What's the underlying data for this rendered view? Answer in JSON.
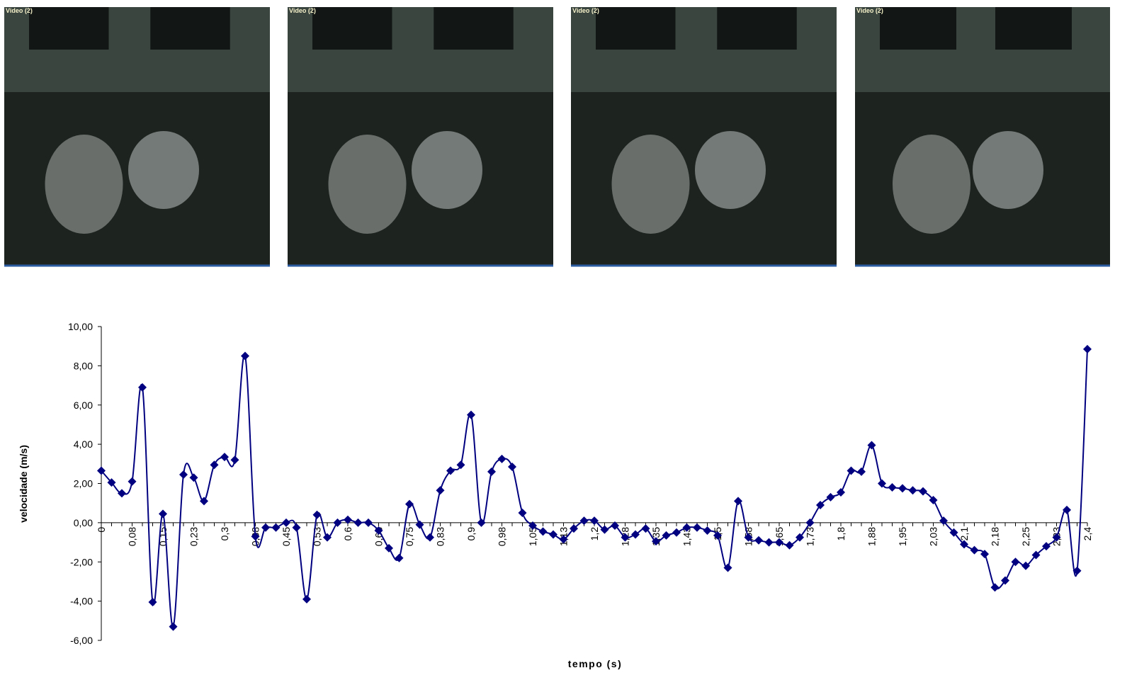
{
  "video_frames": [
    {
      "label": "Video (2)"
    },
    {
      "label": "Video (2)"
    },
    {
      "label": "Video (2)"
    },
    {
      "label": "Video (2)"
    }
  ],
  "chart_data": {
    "type": "line",
    "x_label": "tempo (s)",
    "y_label": "velocidade (m/s)",
    "categories": [
      "0",
      null,
      null,
      "0,08",
      null,
      null,
      "0,15",
      null,
      null,
      "0,23",
      null,
      null,
      "0,3",
      null,
      null,
      "0,38",
      null,
      null,
      "0,45",
      null,
      null,
      "0,53",
      null,
      null,
      "0,6",
      null,
      null,
      "0,68",
      null,
      null,
      "0,75",
      null,
      null,
      "0,83",
      null,
      null,
      "0,9",
      null,
      null,
      "0,98",
      null,
      null,
      "1,05",
      null,
      null,
      "1,13",
      null,
      null,
      "1,2",
      null,
      null,
      "1,28",
      null,
      null,
      "1,35",
      null,
      null,
      "1,43",
      null,
      null,
      "1,5",
      null,
      null,
      "1,58",
      null,
      null,
      "1,65",
      null,
      null,
      "1,73",
      null,
      null,
      "1,8",
      null,
      null,
      "1,88",
      null,
      null,
      "1,95",
      null,
      null,
      "2,03",
      null,
      null,
      "2,1",
      null,
      null,
      "2,18",
      null,
      null,
      "2,25",
      null,
      null,
      "2,33",
      null,
      null,
      "2,4"
    ],
    "series": [
      {
        "color": "#000080",
        "values": [
          2.65,
          2.05,
          1.5,
          2.1,
          6.9,
          -4.05,
          0.45,
          -5.3,
          2.45,
          2.3,
          1.1,
          2.95,
          3.35,
          3.2,
          8.5,
          -0.7,
          -0.25,
          -0.25,
          0.0,
          -0.25,
          -3.9,
          0.4,
          -0.75,
          0.0,
          0.15,
          0.0,
          0.0,
          -0.4,
          -1.3,
          -1.8,
          0.95,
          -0.1,
          -0.75,
          1.65,
          2.65,
          2.95,
          5.5,
          0.0,
          2.6,
          3.25,
          2.85,
          0.5,
          -0.15,
          -0.45,
          -0.6,
          -0.85,
          -0.3,
          0.1,
          0.1,
          -0.35,
          -0.15,
          -0.75,
          -0.6,
          -0.3,
          -0.95,
          -0.65,
          -0.5,
          -0.25,
          -0.25,
          -0.4,
          -0.65,
          -2.3,
          1.1,
          -0.75,
          -0.9,
          -1.0,
          -1.0,
          -1.15,
          -0.75,
          0.0,
          0.9,
          1.3,
          1.55,
          2.65,
          2.6,
          3.95,
          2.0,
          1.8,
          1.75,
          1.65,
          1.6,
          1.15,
          0.1,
          -0.5,
          -1.1,
          -1.4,
          -1.6,
          -3.3,
          -2.95,
          -2.0,
          -2.2,
          -1.65,
          -1.2,
          -0.75,
          0.65,
          -2.45,
          8.85
        ]
      }
    ],
    "ylim": [
      -6,
      10
    ],
    "yticks": [
      {
        "value": -6,
        "label": "-6,00"
      },
      {
        "value": -4,
        "label": "-4,00"
      },
      {
        "value": -2,
        "label": "-2,00"
      },
      {
        "value": 0,
        "label": "0,00"
      },
      {
        "value": 2,
        "label": "2,00"
      },
      {
        "value": 4,
        "label": "4,00"
      },
      {
        "value": 6,
        "label": "6,00"
      },
      {
        "value": 8,
        "label": "8,00"
      },
      {
        "value": 10,
        "label": "10,00"
      }
    ]
  }
}
